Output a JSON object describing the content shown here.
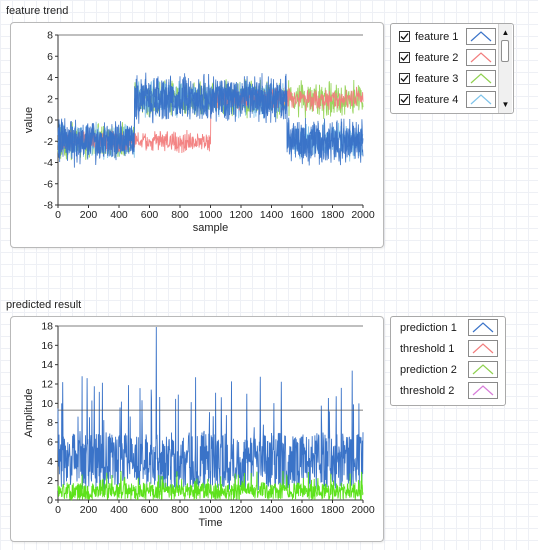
{
  "feature_panel": {
    "title": "feature trend",
    "legend": [
      {
        "label": "feature 1",
        "checked": true,
        "color": "#3a73c8"
      },
      {
        "label": "feature 2",
        "checked": true,
        "color": "#f27d7d"
      },
      {
        "label": "feature 3",
        "checked": true,
        "color": "#8fd14f"
      },
      {
        "label": "feature 4",
        "checked": true,
        "color": "#7ec3ea"
      }
    ],
    "scroll_up_icon": "scroll-up-arrow",
    "scroll_down_icon": "scroll-down-arrow"
  },
  "result_panel": {
    "title": "predicted result",
    "legend": [
      {
        "label": "prediction 1",
        "color": "#3a73c8"
      },
      {
        "label": "threshold 1",
        "color": "#f27d7d"
      },
      {
        "label": "prediction 2",
        "color": "#8fd14f"
      },
      {
        "label": "threshold 2",
        "color": "#d77bd9"
      }
    ]
  },
  "chart_data": [
    {
      "type": "line",
      "title": "",
      "xlabel": "sample",
      "ylabel": "value",
      "xlim": [
        0,
        2000
      ],
      "ylim": [
        -8,
        8
      ],
      "xticks": [
        0,
        200,
        400,
        600,
        800,
        1000,
        1200,
        1400,
        1600,
        1800,
        2000
      ],
      "yticks": [
        -8,
        -6,
        -4,
        -2,
        0,
        2,
        4,
        6,
        8
      ],
      "series": [
        {
          "name": "feature 1",
          "color": "#3a73c8",
          "x": [
            0,
            500,
            1000,
            1500,
            2000
          ],
          "y": [
            -2,
            2,
            2,
            -2,
            -2
          ],
          "noise_range": 2.5
        },
        {
          "name": "feature 2",
          "color": "#f27d7d",
          "x": [
            0,
            500,
            1000,
            1500,
            2000
          ],
          "y": [
            -2,
            -2,
            2,
            2,
            2
          ],
          "noise_range": 1.2
        },
        {
          "name": "feature 3",
          "color": "#8fd14f",
          "x": [
            0,
            500,
            1000,
            1500,
            2000
          ],
          "y": [
            -2,
            2,
            2,
            2,
            2
          ],
          "noise_range": 2.0
        },
        {
          "name": "feature 4",
          "color": "#7ec3ea",
          "x": [
            0,
            500,
            1000,
            1500,
            2000
          ],
          "y": [
            -2,
            2,
            2,
            -2,
            -2
          ],
          "noise_range": 2.0
        }
      ],
      "grid": false
    },
    {
      "type": "line",
      "title": "",
      "xlabel": "Time",
      "ylabel": "Amplitude",
      "xlim": [
        0,
        2000
      ],
      "ylim": [
        0,
        18
      ],
      "xticks": [
        0,
        200,
        400,
        600,
        800,
        1000,
        1200,
        1400,
        1600,
        1800,
        2000
      ],
      "yticks": [
        0,
        2,
        4,
        6,
        8,
        10,
        12,
        14,
        16,
        18
      ],
      "series": [
        {
          "name": "prediction 1",
          "color": "#3a73c8",
          "typical_range": [
            1,
            7
          ],
          "max": 17.9
        },
        {
          "name": "threshold 1",
          "color": "#f27d7d",
          "value": 9.3
        },
        {
          "name": "prediction 2",
          "color": "#5de21b",
          "typical_range": [
            0,
            1.8
          ]
        },
        {
          "name": "threshold 2",
          "color": "#d77bd9",
          "value": 18
        }
      ],
      "grid": false
    }
  ]
}
